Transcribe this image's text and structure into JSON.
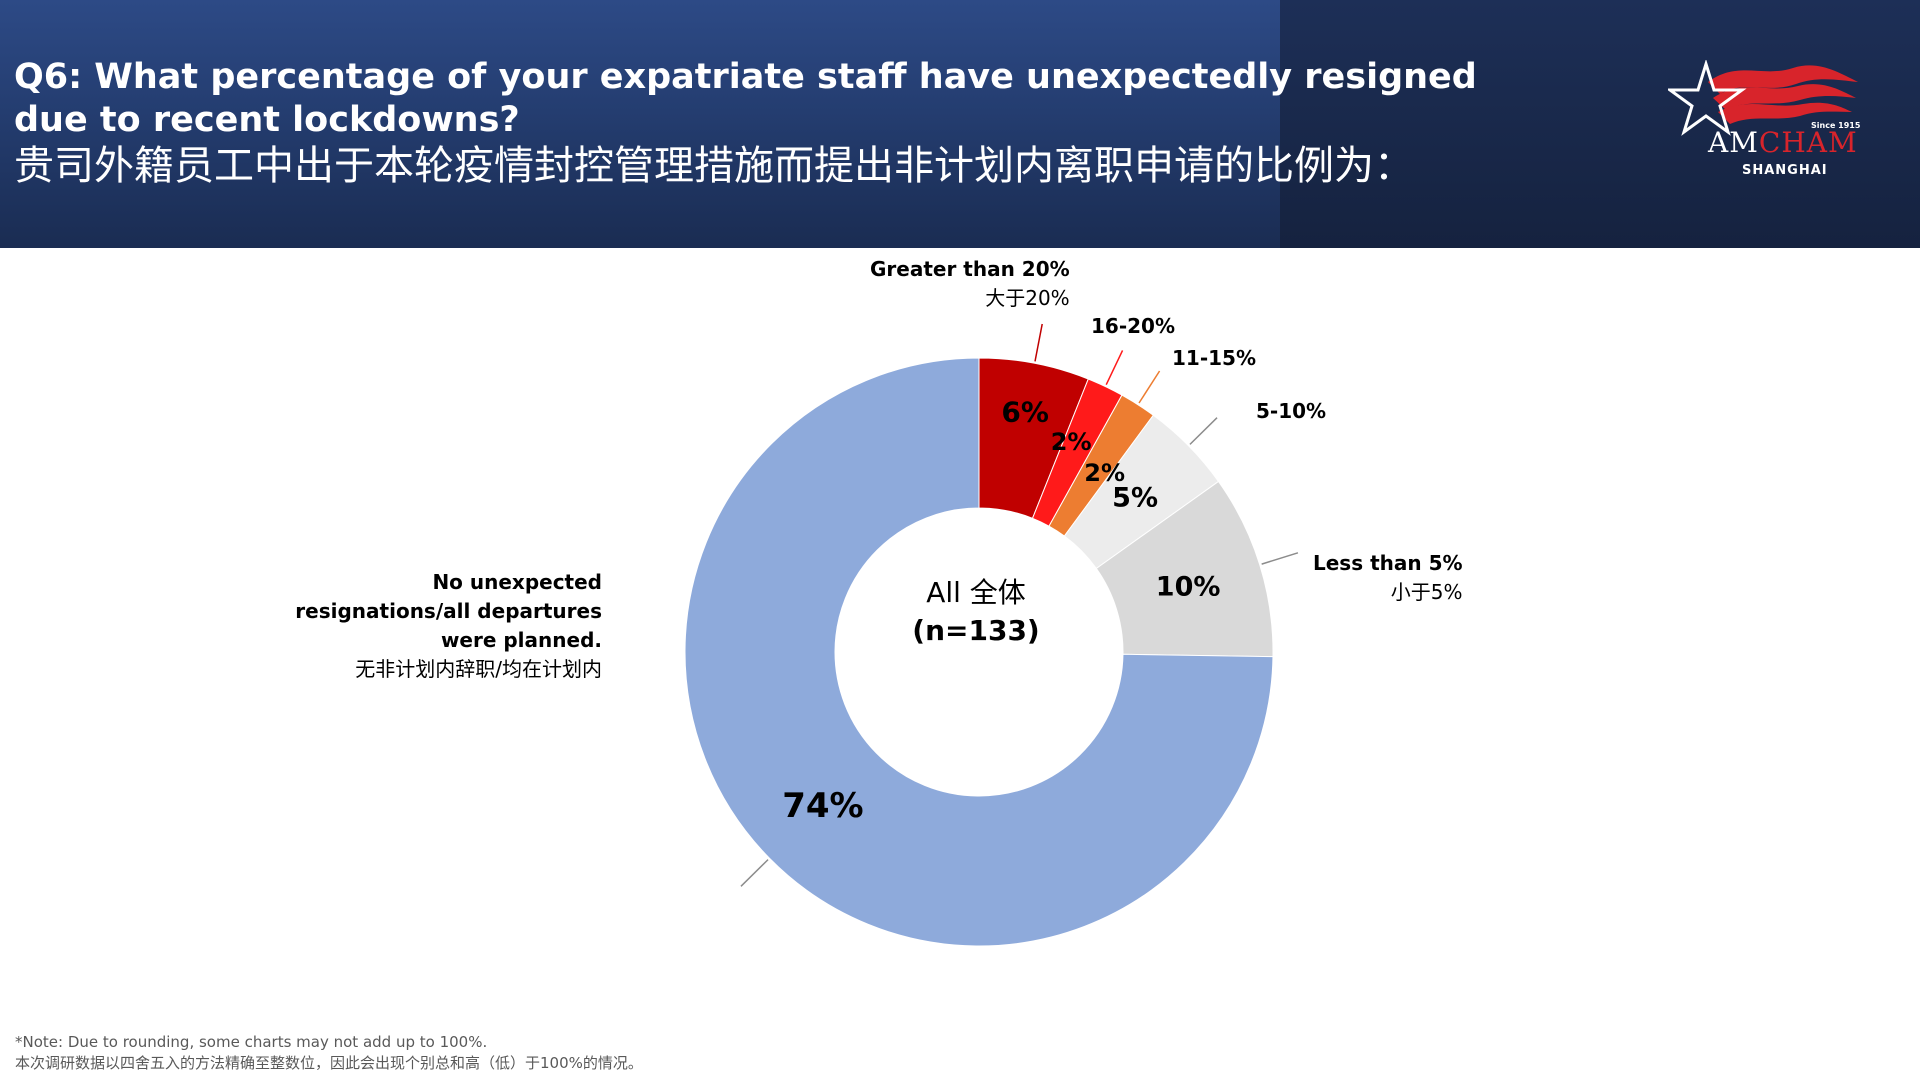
{
  "header": {
    "title_en": "Q6: What percentage of your expatriate staff have unexpectedly resigned due to recent lockdowns?",
    "title_zh": "贵司外籍员工中出于本轮疫情封控管理措施而提出非计划内离职申请的比例为：",
    "logo": {
      "since": "Since 1915",
      "am": "AM",
      "cham": "CHAM",
      "city": "SHANGHAI"
    }
  },
  "chart_data": {
    "type": "pie",
    "center_label": "All 全体",
    "center_n": "(n=133)",
    "slices": [
      {
        "name_en": "Greater than 20%",
        "name_zh": "大于20%",
        "value": 6,
        "value_label": "6%",
        "color": "#c00000"
      },
      {
        "name_en": "16-20%",
        "name_zh": "",
        "value": 2,
        "value_label": "2%",
        "color": "#ff1a1a"
      },
      {
        "name_en": "11-15%",
        "name_zh": "",
        "value": 2,
        "value_label": "2%",
        "color": "#ed7d31"
      },
      {
        "name_en": "5-10%",
        "name_zh": "",
        "value": 5,
        "value_label": "5%",
        "color": "#ececec"
      },
      {
        "name_en": "Less than 5%",
        "name_zh": "小于5%",
        "value": 10,
        "value_label": "10%",
        "color": "#d9d9d9"
      },
      {
        "name_en": "No unexpected resignations/all departures were planned.",
        "name_zh": "无非计划内辞职/均在计划内",
        "value": 74,
        "value_label": "74%",
        "color": "#8eaadb"
      }
    ]
  },
  "footnote": {
    "line1": "*Note: Due to rounding, some charts may not add up to 100%.",
    "line2": "本次调研数据以四舍五入的方法精确至整数位，因此会出现个别总和高（低）于100%的情况。"
  }
}
